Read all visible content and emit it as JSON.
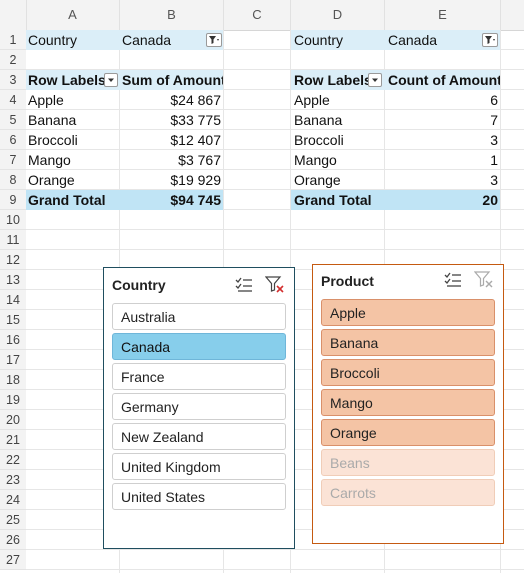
{
  "columns": [
    "A",
    "B",
    "C",
    "D",
    "E"
  ],
  "rows": [
    "1",
    "2",
    "3",
    "4",
    "5",
    "6",
    "7",
    "8",
    "9",
    "10",
    "11",
    "12",
    "13",
    "14",
    "15",
    "16",
    "17",
    "18",
    "19",
    "20",
    "21",
    "22",
    "23",
    "24",
    "25",
    "26",
    "27"
  ],
  "pivot1": {
    "filter_label": "Country",
    "filter_value": "Canada",
    "row_labels_header": "Row Labels",
    "value_header": "Sum of Amount",
    "items": [
      {
        "label": "Apple",
        "value": "$24 867"
      },
      {
        "label": "Banana",
        "value": "$33 775"
      },
      {
        "label": "Broccoli",
        "value": "$12 407"
      },
      {
        "label": "Mango",
        "value": "$3 767"
      },
      {
        "label": "Orange",
        "value": "$19 929"
      }
    ],
    "total_label": "Grand Total",
    "total_value": "$94 745"
  },
  "pivot2": {
    "filter_label": "Country",
    "filter_value": "Canada",
    "row_labels_header": "Row Labels",
    "value_header": "Count of Amount",
    "items": [
      {
        "label": "Apple",
        "value": "6"
      },
      {
        "label": "Banana",
        "value": "7"
      },
      {
        "label": "Broccoli",
        "value": "3"
      },
      {
        "label": "Mango",
        "value": "1"
      },
      {
        "label": "Orange",
        "value": "3"
      }
    ],
    "total_label": "Grand Total",
    "total_value": "20"
  },
  "country_slicer": {
    "title": "Country",
    "items": [
      "Australia",
      "Canada",
      "France",
      "Germany",
      "New Zealand",
      "United Kingdom",
      "United States"
    ],
    "selected": "Canada",
    "border_color": "#1f4e5f",
    "selected_color": "#87ceeb"
  },
  "product_slicer": {
    "title": "Product",
    "items": [
      "Apple",
      "Banana",
      "Broccoli",
      "Mango",
      "Orange",
      "Beans",
      "Carrots"
    ],
    "active_items": [
      "Apple",
      "Banana",
      "Broccoli",
      "Mango",
      "Orange"
    ],
    "border_color": "#c55a11",
    "active_color": "#f4c4a5",
    "inactive_color": "#fbe3d6"
  },
  "icons": {
    "multiselect": "multi-select-icon",
    "clear_filter": "clear-filter-icon",
    "filter": "filter-icon",
    "dropdown": "dropdown-arrow-icon"
  }
}
